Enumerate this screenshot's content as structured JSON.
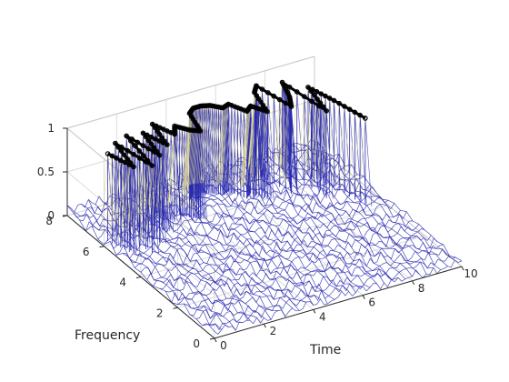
{
  "chart_data": {
    "type": "surface",
    "title": "",
    "xlabel": "Time",
    "ylabel": "Frequency",
    "zlabel": "",
    "xlim": [
      0,
      10
    ],
    "ylim": [
      0,
      8
    ],
    "zlim": [
      0,
      1
    ],
    "xticks": [
      "0",
      "2",
      "4",
      "6",
      "8",
      "10"
    ],
    "yticks": [
      "0",
      "2",
      "4",
      "6",
      "8"
    ],
    "zticks": [
      "0",
      "0.5",
      "1"
    ],
    "grid": true,
    "colors": {
      "mesh": "#2b2bb0",
      "mesh_top": "#d8d38c",
      "ridge": "#000000",
      "axis": "#262626",
      "grid": "#dcdcdc"
    },
    "ridge": {
      "name": "",
      "z": 1,
      "time": [
        0.3,
        0.6,
        0.9,
        1.2,
        1.5,
        1.8,
        2.1,
        2.4,
        2.7,
        3.0,
        3.3,
        3.6,
        3.9,
        4.2,
        4.5,
        4.8,
        5.1,
        5.4,
        5.7,
        6.0,
        6.3,
        6.6,
        6.9,
        7.2,
        7.5,
        7.8,
        8.1,
        8.4,
        8.7,
        9.0,
        9.3
      ],
      "frequency": [
        6.2,
        5.2,
        6.6,
        5.0,
        6.8,
        5.4,
        6.7,
        5.8,
        7.0,
        6.2,
        6.6,
        6.2,
        6.0,
        7.0,
        7.2,
        7.2,
        7.1,
        6.8,
        6.9,
        6.3,
        6.5,
        6.0,
        7.1,
        7.4,
        5.9,
        6.4,
        7.2,
        5.2,
        6.6,
        5.6,
        4.3
      ]
    },
    "noise_floor_max": 0.12
  }
}
